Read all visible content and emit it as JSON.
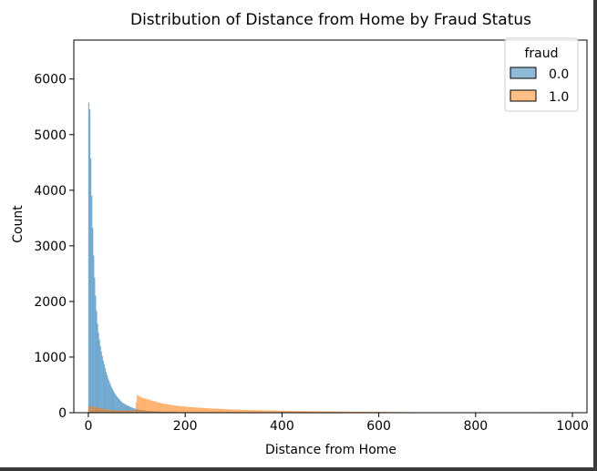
{
  "chart_data": {
    "type": "histogram",
    "title": "Distribution of Distance from Home by Fraud Status",
    "xlabel": "Distance from Home",
    "ylabel": "Count",
    "xlim": [
      -30,
      1030
    ],
    "ylim": [
      0,
      6700
    ],
    "xticks": [
      0,
      200,
      400,
      600,
      800,
      1000
    ],
    "yticks": [
      0,
      1000,
      2000,
      3000,
      4000,
      5000,
      6000
    ],
    "grid": false,
    "legend": {
      "title": "fraud",
      "placement": "top-right",
      "entries": [
        {
          "label": "0.0",
          "color": "#1f77b4"
        },
        {
          "label": "1.0",
          "color": "#ff7f0e"
        }
      ]
    },
    "series": [
      {
        "name": "0.0",
        "color": "#1f77b4",
        "points": [
          [
            0,
            5200
          ],
          [
            2,
            5950
          ],
          [
            4,
            4950
          ],
          [
            6,
            4200
          ],
          [
            8,
            3600
          ],
          [
            10,
            3050
          ],
          [
            12,
            2600
          ],
          [
            14,
            2250
          ],
          [
            16,
            1950
          ],
          [
            18,
            1700
          ],
          [
            20,
            1500
          ],
          [
            24,
            1250
          ],
          [
            28,
            1050
          ],
          [
            32,
            900
          ],
          [
            36,
            760
          ],
          [
            40,
            640
          ],
          [
            45,
            520
          ],
          [
            50,
            420
          ],
          [
            55,
            340
          ],
          [
            60,
            280
          ],
          [
            65,
            230
          ],
          [
            70,
            180
          ],
          [
            80,
            130
          ],
          [
            90,
            90
          ],
          [
            100,
            60
          ],
          [
            120,
            35
          ],
          [
            150,
            15
          ],
          [
            200,
            6
          ],
          [
            300,
            2
          ],
          [
            600,
            0
          ]
        ]
      },
      {
        "name": "1.0",
        "color": "#ff7f0e",
        "points": [
          [
            0,
            120
          ],
          [
            50,
            40
          ],
          [
            98,
            40
          ],
          [
            100,
            320
          ],
          [
            110,
            270
          ],
          [
            130,
            220
          ],
          [
            150,
            170
          ],
          [
            180,
            125
          ],
          [
            210,
            100
          ],
          [
            250,
            75
          ],
          [
            300,
            55
          ],
          [
            350,
            42
          ],
          [
            400,
            33
          ],
          [
            450,
            26
          ],
          [
            500,
            20
          ],
          [
            550,
            15
          ],
          [
            600,
            11
          ],
          [
            650,
            8
          ],
          [
            700,
            5
          ],
          [
            800,
            3
          ],
          [
            900,
            2
          ],
          [
            1000,
            1
          ]
        ]
      }
    ]
  }
}
